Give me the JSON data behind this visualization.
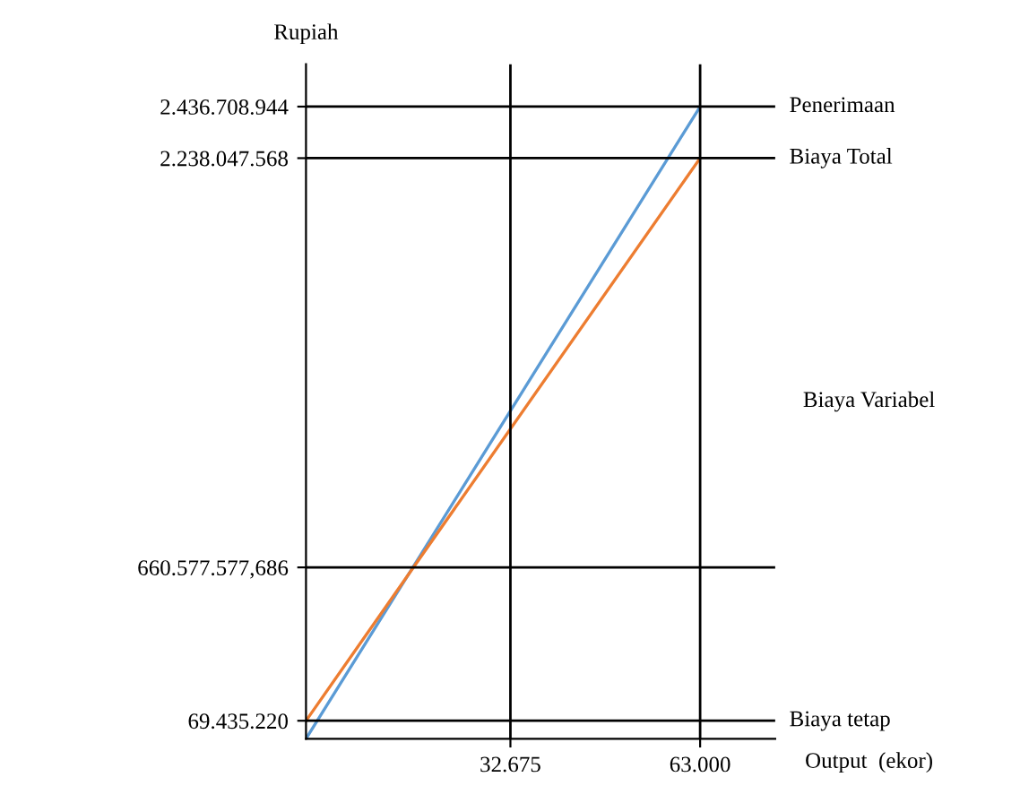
{
  "chart_data": {
    "type": "line",
    "xlabel": "Output  (ekor)",
    "ylabel": "Rupiah",
    "x": [
      0,
      63000
    ],
    "series": [
      {
        "name": "Penerimaan",
        "color": "#5b9bd5",
        "values": [
          0,
          2436708944
        ]
      },
      {
        "name": "Biaya Total",
        "color": "#ed7d31",
        "values": [
          69435220,
          2238047568
        ]
      }
    ],
    "xlim": [
      0,
      75000
    ],
    "ylim": [
      0,
      2600000000
    ],
    "xticks": [
      {
        "value": 32675,
        "label": "32.675"
      },
      {
        "value": 63000,
        "label": "63.000"
      }
    ],
    "yticks": [
      {
        "value": 69435220,
        "label": "69.435.220"
      },
      {
        "value": 660577577.686,
        "label": "660.577.577,686"
      },
      {
        "value": 2238047568,
        "label": "2.238.047.568"
      },
      {
        "value": 2436708944,
        "label": "2.436.708.944"
      }
    ],
    "ref_lines": [
      {
        "axis": "y",
        "value": 69435220,
        "label": "Biaya tetap",
        "color": "#000000"
      },
      {
        "axis": "y",
        "value": 660577577.686,
        "color": "#000000"
      },
      {
        "axis": "y",
        "value": 2238047568,
        "color": "#000000"
      },
      {
        "axis": "y",
        "value": 2436708944,
        "color": "#000000"
      },
      {
        "axis": "x",
        "value": 32675,
        "color": "#000000"
      },
      {
        "axis": "x",
        "value": 63000,
        "color": "#000000"
      }
    ],
    "annotations": [
      "Biaya Variabel"
    ],
    "grid": false,
    "legend": false,
    "marker": "none",
    "line_style": "solid"
  }
}
